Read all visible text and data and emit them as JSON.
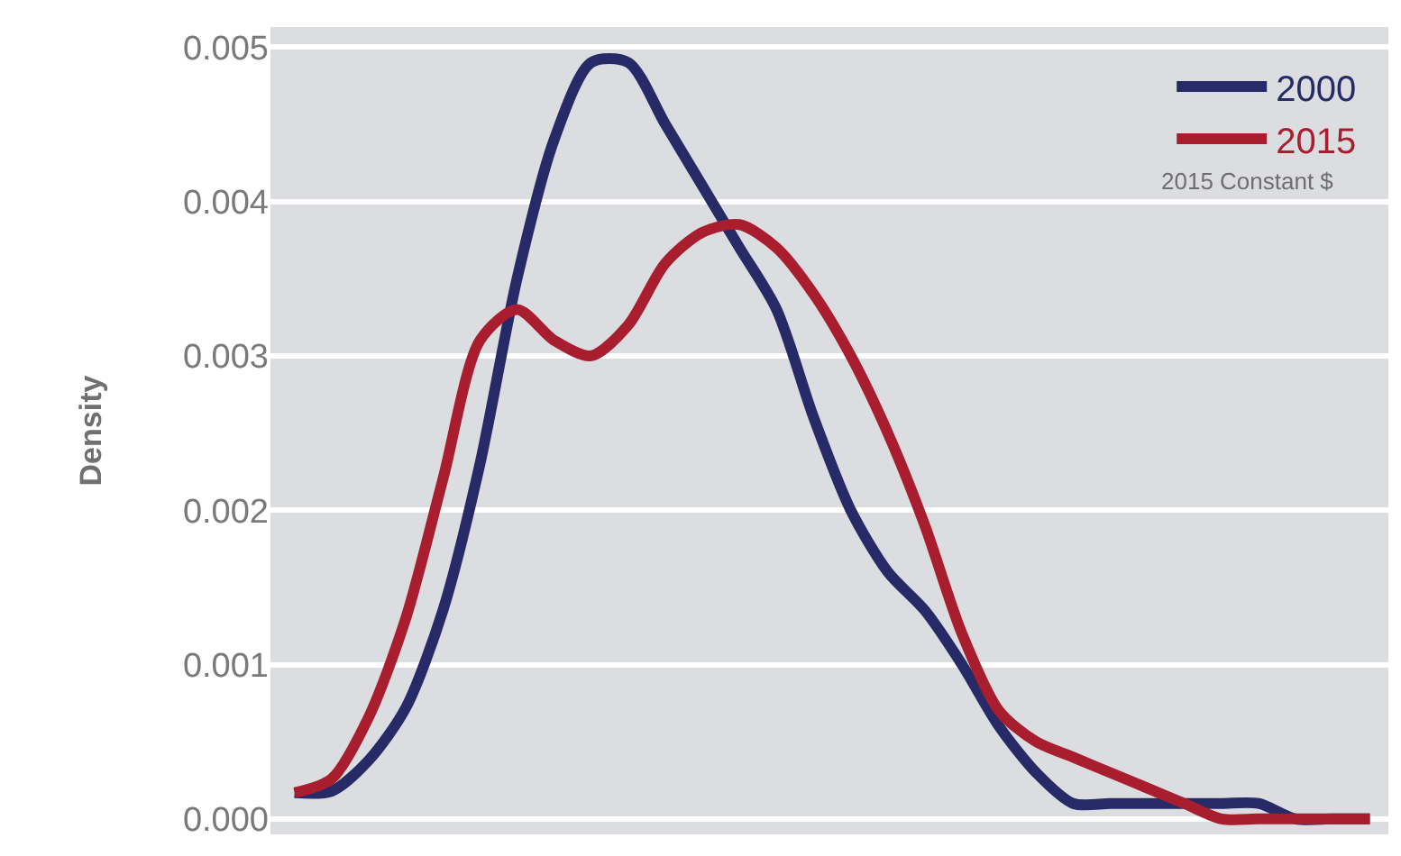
{
  "chart_data": {
    "type": "line",
    "ylabel": "Density",
    "categories": [
      null,
      null,
      null,
      null,
      null,
      null,
      null,
      null,
      null,
      null,
      null,
      null,
      null,
      null,
      null,
      null,
      null,
      null,
      null,
      null,
      null,
      null,
      null,
      null,
      null,
      null,
      null,
      null,
      null,
      null
    ],
    "series": [
      {
        "name": "2000",
        "color": "#262a66",
        "values": [
          0.00017,
          0.00018,
          0.00038,
          0.00072,
          0.00135,
          0.0023,
          0.0035,
          0.0044,
          0.0049,
          0.0049,
          0.0045,
          0.0041,
          0.0037,
          0.0033,
          0.0026,
          0.002,
          0.0016,
          0.00135,
          0.001,
          0.0006,
          0.0003,
          0.0001,
          0.0001,
          0.0001,
          0.0001,
          0.0001,
          0.0001,
          0.0,
          0.0,
          0.0
        ]
      },
      {
        "name": "2015",
        "color": "#a91e2f",
        "values": [
          0.00017,
          0.00026,
          0.00066,
          0.0013,
          0.0022,
          0.0031,
          0.0033,
          0.0031,
          0.003,
          0.0032,
          0.0036,
          0.0038,
          0.00385,
          0.0037,
          0.0034,
          0.003,
          0.0025,
          0.0019,
          0.0012,
          0.0007,
          0.0005,
          0.0004,
          0.0003,
          0.0002,
          0.0001,
          0.0,
          0.0,
          0.0,
          0.0,
          0.0
        ]
      }
    ],
    "ylim": [
      -0.0001,
      0.00513
    ],
    "yticks": [
      {
        "value": 0,
        "label": "0.000"
      },
      {
        "value": 0.001,
        "label": "0.001"
      },
      {
        "value": 0.002,
        "label": "0.002"
      },
      {
        "value": 0.003,
        "label": "0.003"
      },
      {
        "value": 0.004,
        "label": "0.004"
      },
      {
        "value": 0.005,
        "label": "0.005"
      }
    ],
    "annotations": [
      "2015 Constant $"
    ],
    "grid": "y",
    "legend": "top right",
    "tick_labels": "y",
    "marker": "none",
    "line_style": "solid"
  }
}
